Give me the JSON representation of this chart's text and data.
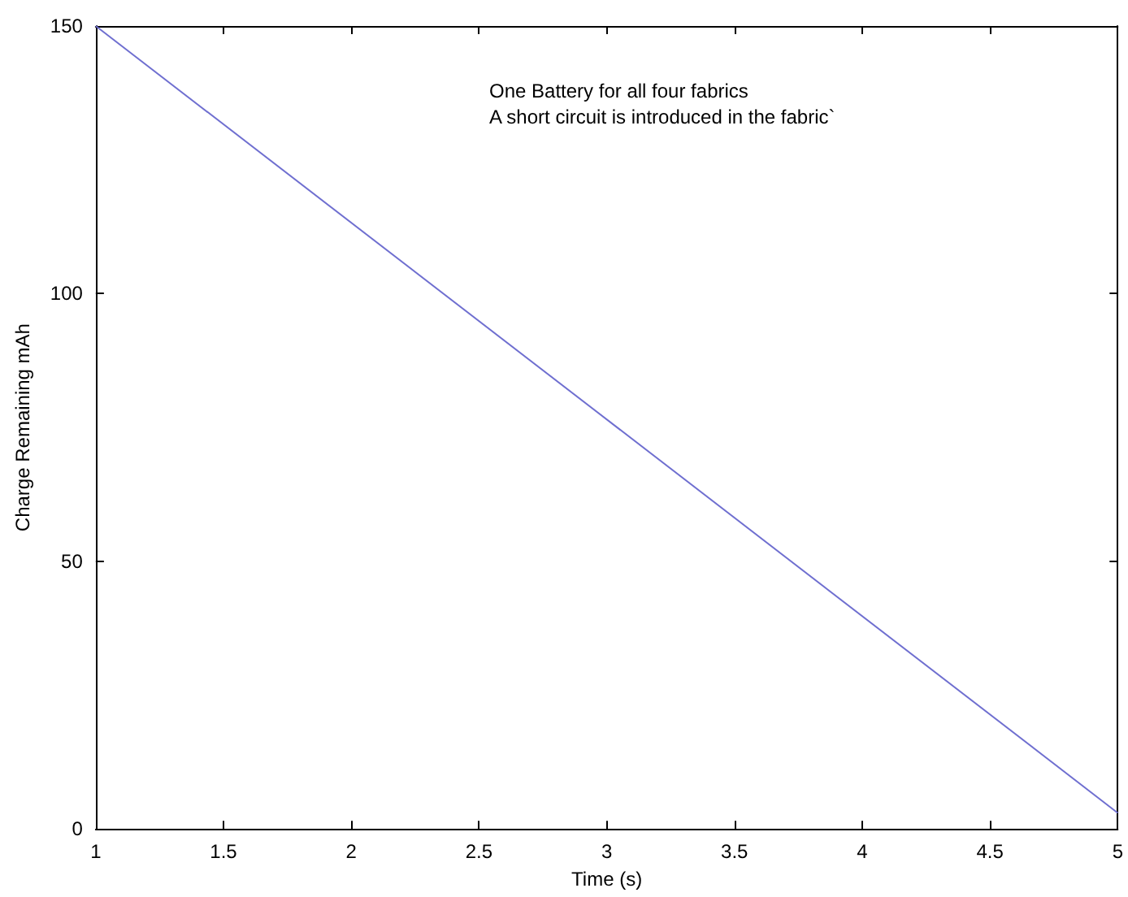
{
  "chart_data": {
    "type": "line",
    "xlabel": "Time (s)",
    "ylabel": "Charge Remaining mAh",
    "annotations": [
      "One Battery for all four fabrics",
      "A short circuit is introduced in the fabric`"
    ],
    "x": [
      1,
      5
    ],
    "series": [
      {
        "color": "#6f6fd0",
        "values": [
          150,
          3
        ]
      }
    ],
    "xlim": [
      1,
      5
    ],
    "xticks": [
      1,
      1.5,
      2,
      2.5,
      3,
      3.5,
      4,
      4.5,
      5
    ],
    "ylim": [
      0,
      150
    ],
    "yticks": [
      0,
      50,
      100,
      150
    ],
    "marker": "none",
    "line_style": "solid"
  }
}
